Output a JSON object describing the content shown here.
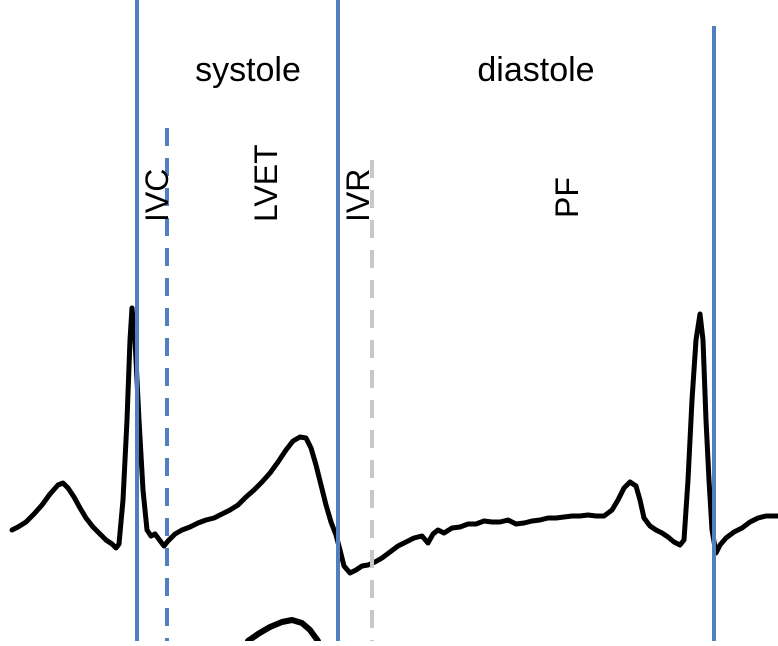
{
  "phases": {
    "systole": "systole",
    "diastole": "diastole"
  },
  "intervals": {
    "ivc": "IVC",
    "lvet": "LVET",
    "ivr": "IVR",
    "pf": "PF"
  },
  "colors": {
    "marker_line": "#4f7fbf",
    "ivr_dash": "#c8c8c8",
    "trace": "#000000",
    "background": "#ffffff"
  }
}
